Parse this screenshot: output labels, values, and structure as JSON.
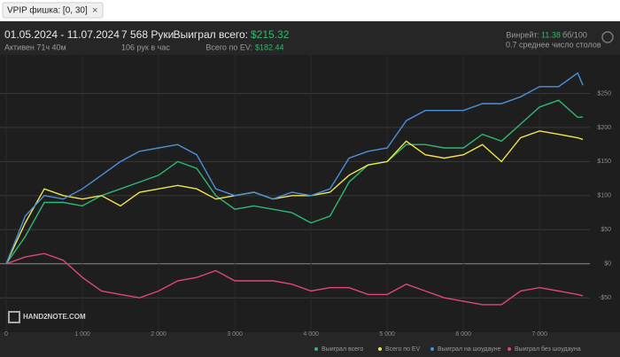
{
  "filter_tag": "VPIP фишка: [0, 30]",
  "header": {
    "date_range": "01.05.2024 - 11.07.2024",
    "active": "Активен 71ч 40м",
    "hands": "7 568 Руки",
    "hands_per_hour": "106 рук в час",
    "won_label": "Выиграл всего:",
    "won_value": "$215.32",
    "ev_label": "Всего по EV:",
    "ev_value": "$182.44",
    "winrate_label": "Винрейт:",
    "winrate_value": "11.38",
    "winrate_unit": "бб/100",
    "tables": "0.7 среднее число столов"
  },
  "watermark": "HAND2NOTE.COM",
  "chart_data": {
    "type": "line",
    "x": [
      0,
      250,
      500,
      750,
      1000,
      1250,
      1500,
      1750,
      2000,
      2250,
      2500,
      2750,
      3000,
      3250,
      3500,
      3750,
      4000,
      4250,
      4500,
      4750,
      5000,
      5250,
      5500,
      5750,
      6000,
      6250,
      6500,
      6750,
      7000,
      7250,
      7500,
      7568
    ],
    "series": [
      {
        "name": "Выиграл всего",
        "color": "#2eb872",
        "values": [
          0,
          40,
          90,
          90,
          85,
          100,
          110,
          120,
          130,
          150,
          140,
          100,
          80,
          85,
          80,
          75,
          60,
          70,
          120,
          145,
          150,
          175,
          175,
          170,
          170,
          190,
          180,
          205,
          230,
          240,
          215,
          215.32
        ]
      },
      {
        "name": "Всего по EV",
        "color": "#f0e54a",
        "values": [
          0,
          60,
          110,
          100,
          95,
          100,
          85,
          105,
          110,
          115,
          110,
          95,
          100,
          105,
          95,
          100,
          100,
          105,
          130,
          145,
          150,
          180,
          160,
          155,
          160,
          175,
          150,
          185,
          195,
          190,
          185,
          182.44
        ]
      },
      {
        "name": "Выиграл на шоудауне",
        "color": "#4a90d9",
        "values": [
          0,
          70,
          100,
          95,
          110,
          130,
          150,
          165,
          170,
          175,
          160,
          110,
          100,
          105,
          95,
          105,
          100,
          110,
          155,
          165,
          170,
          210,
          225,
          225,
          225,
          235,
          235,
          245,
          260,
          260,
          280,
          262
        ]
      },
      {
        "name": "Выиграл без шоудауна",
        "color": "#e0457b",
        "values": [
          0,
          10,
          15,
          5,
          -20,
          -40,
          -45,
          -50,
          -40,
          -25,
          -20,
          -10,
          -25,
          -25,
          -25,
          -30,
          -40,
          -35,
          -35,
          -45,
          -45,
          -30,
          -40,
          -50,
          -55,
          -60,
          -60,
          -40,
          -35,
          -40,
          -45,
          -47
        ]
      }
    ],
    "xlim": [
      0,
      7660
    ],
    "xticks": [
      0,
      {
        "value": 1000,
        "label": "1 000"
      },
      {
        "value": 2000,
        "label": "2 000"
      },
      {
        "value": 3000,
        "label": "3 000"
      },
      {
        "value": 4000,
        "label": "4 000"
      },
      {
        "value": 5000,
        "label": "5 000"
      },
      {
        "value": 6000,
        "label": "6 000"
      },
      {
        "value": 7000,
        "label": "7 000"
      }
    ],
    "ylim": [
      -90,
      300
    ],
    "yticks": [
      {
        "value": -50,
        "label": "-$50"
      },
      {
        "value": 0,
        "label": "$0"
      },
      {
        "value": 50,
        "label": "$50"
      },
      {
        "value": 100,
        "label": "$100"
      },
      {
        "value": 150,
        "label": "$150"
      },
      {
        "value": 200,
        "label": "$200"
      },
      {
        "value": 250,
        "label": "$250"
      }
    ],
    "grid": true,
    "legend": "bottom-right"
  }
}
